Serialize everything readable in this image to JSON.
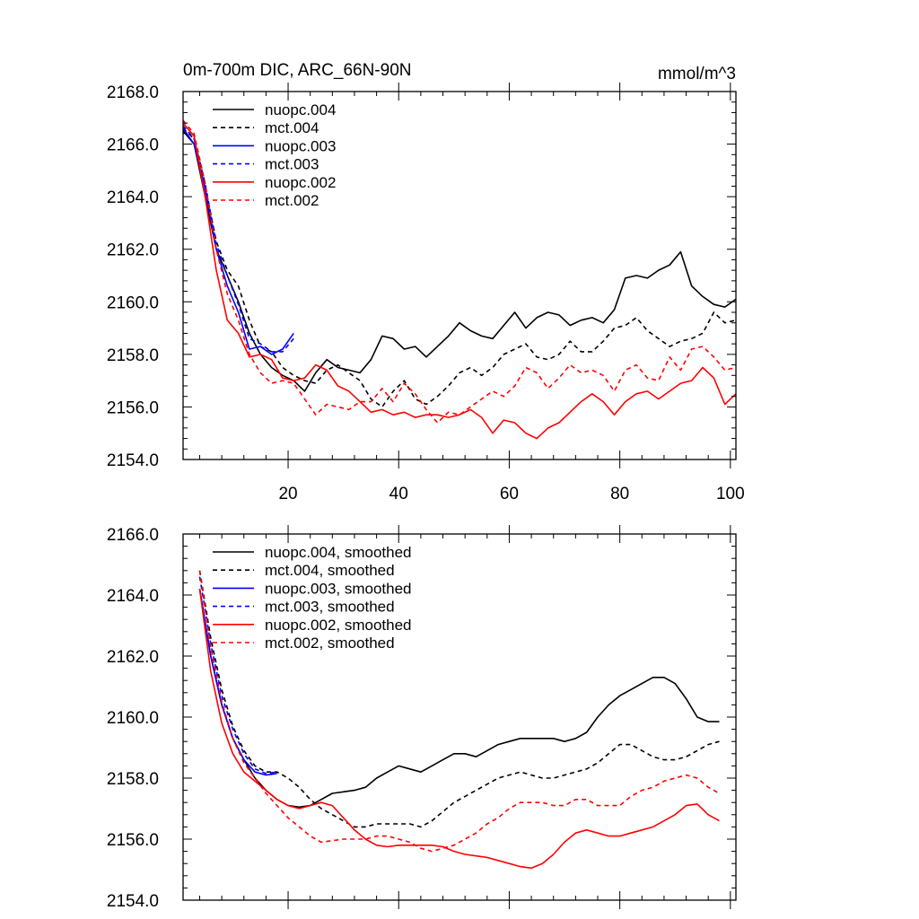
{
  "chart_data": [
    {
      "type": "line",
      "title": "0m-700m DIC, ARC_66N-90N",
      "units": "mmol/m^3",
      "xlabel": "",
      "ylabel": "",
      "xlim": [
        1,
        101
      ],
      "ylim": [
        2154,
        2168
      ],
      "xticks": [
        20,
        40,
        60,
        80,
        100
      ],
      "yticks": [
        "2154.0",
        "2156.0",
        "2158.0",
        "2160.0",
        "2162.0",
        "2164.0",
        "2166.0",
        "2168.0"
      ],
      "legend_position": "top-left",
      "series": [
        {
          "name": "nuopc.004",
          "color": "#000000",
          "dash": false,
          "x": [
            1,
            3,
            5,
            7,
            9,
            11,
            13,
            15,
            17,
            19,
            21,
            23,
            25,
            27,
            29,
            31,
            33,
            35,
            37,
            39,
            41,
            43,
            45,
            47,
            49,
            51,
            53,
            55,
            57,
            59,
            61,
            63,
            65,
            67,
            69,
            71,
            73,
            75,
            77,
            79,
            81,
            83,
            85,
            87,
            89,
            91,
            93,
            95,
            97,
            99,
            101
          ],
          "y": [
            2166.5,
            2166.0,
            2164.0,
            2162.0,
            2161.0,
            2160.0,
            2158.8,
            2158.0,
            2157.5,
            2157.2,
            2157.0,
            2156.6,
            2157.3,
            2157.8,
            2157.5,
            2157.4,
            2157.3,
            2157.8,
            2158.7,
            2158.6,
            2158.2,
            2158.3,
            2157.9,
            2158.3,
            2158.7,
            2159.2,
            2158.9,
            2158.7,
            2158.6,
            2159.1,
            2159.6,
            2159.0,
            2159.4,
            2159.6,
            2159.5,
            2159.1,
            2159.3,
            2159.4,
            2159.2,
            2159.7,
            2160.9,
            2161.0,
            2160.9,
            2161.2,
            2161.4,
            2161.9,
            2160.6,
            2160.2,
            2159.9,
            2159.8,
            2160.1
          ]
        },
        {
          "name": "mct.004",
          "color": "#000000",
          "dash": true,
          "x": [
            1,
            3,
            5,
            7,
            9,
            11,
            13,
            15,
            17,
            19,
            21,
            23,
            25,
            27,
            29,
            31,
            33,
            35,
            37,
            39,
            41,
            43,
            45,
            47,
            49,
            51,
            53,
            55,
            57,
            59,
            61,
            63,
            65,
            67,
            69,
            71,
            73,
            75,
            77,
            79,
            81,
            83,
            85,
            87,
            89,
            91,
            93,
            95,
            97,
            99,
            101
          ],
          "y": [
            2166.6,
            2166.2,
            2164.4,
            2162.3,
            2161.2,
            2160.6,
            2159.3,
            2158.3,
            2158.1,
            2157.5,
            2157.2,
            2157.0,
            2156.9,
            2157.4,
            2157.6,
            2157.3,
            2157.0,
            2156.3,
            2156.0,
            2156.6,
            2157.0,
            2156.3,
            2156.1,
            2156.4,
            2156.8,
            2157.3,
            2157.5,
            2157.2,
            2157.5,
            2158.0,
            2158.2,
            2158.4,
            2157.9,
            2157.8,
            2158.0,
            2158.5,
            2158.1,
            2158.1,
            2158.5,
            2159.0,
            2159.1,
            2159.4,
            2158.9,
            2158.6,
            2158.3,
            2158.5,
            2158.6,
            2158.8,
            2159.6,
            2159.2,
            2159.3
          ]
        },
        {
          "name": "nuopc.003",
          "color": "#0000ff",
          "dash": false,
          "x": [
            1,
            3,
            5,
            7,
            9,
            11,
            13,
            15,
            17,
            19,
            21
          ],
          "y": [
            2166.6,
            2166.0,
            2164.3,
            2162.0,
            2160.6,
            2159.6,
            2158.2,
            2158.3,
            2158.0,
            2158.2,
            2158.8
          ]
        },
        {
          "name": "mct.003",
          "color": "#0000ff",
          "dash": true,
          "x": [
            1,
            3,
            5,
            7,
            9,
            11,
            13,
            15,
            17,
            19,
            21
          ],
          "y": [
            2166.7,
            2166.2,
            2164.5,
            2162.2,
            2161.0,
            2159.9,
            2158.6,
            2158.4,
            2158.1,
            2158.1,
            2158.6
          ]
        },
        {
          "name": "nuopc.002",
          "color": "#ff0000",
          "dash": false,
          "x": [
            1,
            3,
            5,
            7,
            9,
            11,
            13,
            15,
            17,
            19,
            21,
            23,
            25,
            27,
            29,
            31,
            33,
            35,
            37,
            39,
            41,
            43,
            45,
            47,
            49,
            51,
            53,
            55,
            57,
            59,
            61,
            63,
            65,
            67,
            69,
            71,
            73,
            75,
            77,
            79,
            81,
            83,
            85,
            87,
            89,
            91,
            93,
            95,
            97,
            99,
            101
          ],
          "y": [
            2166.8,
            2166.3,
            2164.0,
            2161.2,
            2159.3,
            2158.8,
            2157.9,
            2158.0,
            2157.8,
            2157.1,
            2157.0,
            2157.1,
            2157.6,
            2157.4,
            2156.8,
            2156.6,
            2156.2,
            2155.8,
            2155.9,
            2155.7,
            2155.8,
            2155.6,
            2155.7,
            2155.7,
            2155.6,
            2155.7,
            2155.9,
            2155.6,
            2155.0,
            2155.5,
            2155.4,
            2155.0,
            2154.8,
            2155.2,
            2155.4,
            2155.8,
            2156.2,
            2156.5,
            2156.2,
            2155.7,
            2156.2,
            2156.5,
            2156.6,
            2156.3,
            2156.6,
            2156.9,
            2157.0,
            2157.5,
            2157.1,
            2156.1,
            2156.5
          ]
        },
        {
          "name": "mct.002",
          "color": "#ff0000",
          "dash": true,
          "x": [
            1,
            3,
            5,
            7,
            9,
            11,
            13,
            15,
            17,
            19,
            21,
            23,
            25,
            27,
            29,
            31,
            33,
            35,
            37,
            39,
            41,
            43,
            45,
            47,
            49,
            51,
            53,
            55,
            57,
            59,
            61,
            63,
            65,
            67,
            69,
            71,
            73,
            75,
            77,
            79,
            81,
            83,
            85,
            87,
            89,
            91,
            93,
            95,
            97,
            99,
            101
          ],
          "y": [
            2166.9,
            2166.4,
            2164.5,
            2162.0,
            2160.3,
            2159.3,
            2158.0,
            2157.3,
            2156.9,
            2157.0,
            2156.9,
            2156.3,
            2155.7,
            2156.1,
            2156.0,
            2155.9,
            2156.2,
            2156.2,
            2156.7,
            2156.2,
            2156.9,
            2156.5,
            2155.9,
            2155.4,
            2155.8,
            2155.7,
            2156.0,
            2156.3,
            2156.6,
            2156.4,
            2156.8,
            2157.5,
            2157.3,
            2156.7,
            2157.1,
            2157.6,
            2157.3,
            2157.4,
            2157.2,
            2156.6,
            2157.4,
            2157.6,
            2157.1,
            2157.0,
            2157.9,
            2157.4,
            2158.2,
            2158.3,
            2157.9,
            2157.4,
            2157.5
          ]
        }
      ]
    },
    {
      "type": "line",
      "title": "",
      "xlabel": "",
      "ylabel": "",
      "xlim": [
        1,
        101
      ],
      "ylim": [
        2154,
        2166
      ],
      "xticks": [
        20,
        40,
        60,
        80,
        100
      ],
      "yticks": [
        "2154.0",
        "2156.0",
        "2158.0",
        "2160.0",
        "2162.0",
        "2164.0",
        "2166.0"
      ],
      "legend_position": "top-left",
      "series": [
        {
          "name": "nuopc.004, smoothed",
          "color": "#000000",
          "dash": false,
          "x": [
            4,
            6,
            8,
            10,
            12,
            14,
            16,
            18,
            20,
            22,
            24,
            26,
            28,
            30,
            32,
            34,
            36,
            38,
            40,
            42,
            44,
            46,
            48,
            50,
            52,
            54,
            56,
            58,
            60,
            62,
            64,
            66,
            68,
            70,
            72,
            74,
            76,
            78,
            80,
            82,
            84,
            86,
            88,
            90,
            92,
            94,
            96,
            98
          ],
          "y": [
            2164.2,
            2162.0,
            2160.4,
            2159.3,
            2158.6,
            2158.0,
            2157.6,
            2157.3,
            2157.1,
            2157.05,
            2157.1,
            2157.3,
            2157.5,
            2157.55,
            2157.6,
            2157.7,
            2158.0,
            2158.2,
            2158.4,
            2158.3,
            2158.2,
            2158.4,
            2158.6,
            2158.8,
            2158.8,
            2158.7,
            2158.9,
            2159.1,
            2159.2,
            2159.3,
            2159.3,
            2159.3,
            2159.3,
            2159.2,
            2159.3,
            2159.5,
            2160.0,
            2160.4,
            2160.7,
            2160.9,
            2161.1,
            2161.3,
            2161.3,
            2161.1,
            2160.6,
            2160.0,
            2159.85,
            2159.85
          ]
        },
        {
          "name": "mct.004, smoothed",
          "color": "#000000",
          "dash": true,
          "x": [
            4,
            6,
            8,
            10,
            12,
            14,
            16,
            18,
            20,
            22,
            24,
            26,
            28,
            30,
            32,
            34,
            36,
            38,
            40,
            42,
            44,
            46,
            48,
            50,
            52,
            54,
            56,
            58,
            60,
            62,
            64,
            66,
            68,
            70,
            72,
            74,
            76,
            78,
            80,
            82,
            84,
            86,
            88,
            90,
            92,
            94,
            96,
            98
          ],
          "y": [
            2164.8,
            2162.6,
            2160.9,
            2159.7,
            2158.9,
            2158.4,
            2158.2,
            2158.2,
            2158.0,
            2157.7,
            2157.3,
            2157.0,
            2156.8,
            2156.6,
            2156.4,
            2156.4,
            2156.5,
            2156.5,
            2156.5,
            2156.5,
            2156.4,
            2156.6,
            2156.9,
            2157.2,
            2157.4,
            2157.6,
            2157.8,
            2158.0,
            2158.1,
            2158.2,
            2158.1,
            2158.0,
            2158.0,
            2158.1,
            2158.2,
            2158.3,
            2158.5,
            2158.8,
            2159.1,
            2159.1,
            2158.9,
            2158.7,
            2158.6,
            2158.6,
            2158.7,
            2158.9,
            2159.1,
            2159.2
          ]
        },
        {
          "name": "nuopc.003, smoothed",
          "color": "#0000ff",
          "dash": false,
          "x": [
            4,
            6,
            8,
            10,
            12,
            14,
            16,
            18
          ],
          "y": [
            2164.2,
            2162.0,
            2160.4,
            2159.3,
            2158.6,
            2158.2,
            2158.1,
            2158.15
          ]
        },
        {
          "name": "mct.003, smoothed",
          "color": "#0000ff",
          "dash": true,
          "x": [
            4,
            6,
            8,
            10,
            12,
            14,
            16,
            18
          ],
          "y": [
            2164.6,
            2162.4,
            2160.7,
            2159.6,
            2158.8,
            2158.3,
            2158.15,
            2158.2
          ]
        },
        {
          "name": "nuopc.002, smoothed",
          "color": "#ff0000",
          "dash": false,
          "x": [
            4,
            6,
            8,
            10,
            12,
            14,
            16,
            18,
            20,
            22,
            24,
            26,
            28,
            30,
            32,
            34,
            36,
            38,
            40,
            42,
            44,
            46,
            48,
            50,
            52,
            54,
            56,
            58,
            60,
            62,
            64,
            66,
            68,
            70,
            72,
            74,
            76,
            78,
            80,
            82,
            84,
            86,
            88,
            90,
            92,
            94,
            96,
            98
          ],
          "y": [
            2164.2,
            2161.5,
            2159.8,
            2158.8,
            2158.2,
            2157.9,
            2157.6,
            2157.3,
            2157.1,
            2157.0,
            2157.1,
            2157.2,
            2157.1,
            2156.7,
            2156.3,
            2156.0,
            2155.8,
            2155.75,
            2155.8,
            2155.8,
            2155.8,
            2155.8,
            2155.75,
            2155.6,
            2155.5,
            2155.45,
            2155.4,
            2155.3,
            2155.2,
            2155.1,
            2155.05,
            2155.2,
            2155.5,
            2155.9,
            2156.2,
            2156.3,
            2156.2,
            2156.1,
            2156.1,
            2156.2,
            2156.3,
            2156.4,
            2156.6,
            2156.8,
            2157.1,
            2157.15,
            2156.8,
            2156.6
          ]
        },
        {
          "name": "mct.002, smoothed",
          "color": "#ff0000",
          "dash": true,
          "x": [
            4,
            6,
            8,
            10,
            12,
            14,
            16,
            18,
            20,
            22,
            24,
            26,
            28,
            30,
            32,
            34,
            36,
            38,
            40,
            42,
            44,
            46,
            48,
            50,
            52,
            54,
            56,
            58,
            60,
            62,
            64,
            66,
            68,
            70,
            72,
            74,
            76,
            78,
            80,
            82,
            84,
            86,
            88,
            90,
            92,
            94,
            96,
            98
          ],
          "y": [
            2164.8,
            2162.3,
            2160.5,
            2159.3,
            2158.5,
            2158.0,
            2157.5,
            2157.1,
            2156.7,
            2156.4,
            2156.1,
            2155.9,
            2155.95,
            2156.0,
            2156.0,
            2156.0,
            2156.1,
            2156.1,
            2156.0,
            2155.9,
            2155.7,
            2155.6,
            2155.7,
            2155.8,
            2156.0,
            2156.2,
            2156.5,
            2156.7,
            2157.0,
            2157.2,
            2157.2,
            2157.2,
            2157.1,
            2157.1,
            2157.3,
            2157.3,
            2157.1,
            2157.1,
            2157.1,
            2157.4,
            2157.6,
            2157.7,
            2157.9,
            2158.0,
            2158.1,
            2158.0,
            2157.7,
            2157.5
          ]
        }
      ]
    }
  ]
}
